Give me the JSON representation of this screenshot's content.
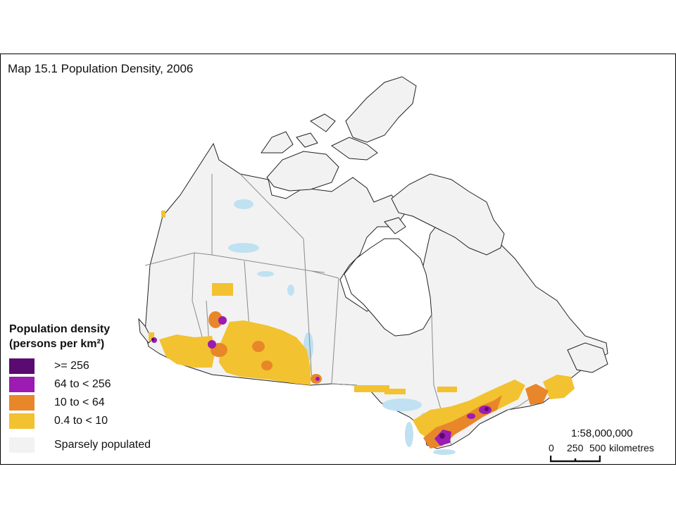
{
  "map": {
    "title": "Map 15.1 Population Density, 2006",
    "legend": {
      "title_line1": "Population density",
      "title_line2": "(persons per km²)",
      "items": [
        {
          "label": ">= 256",
          "color": "#5a0a70"
        },
        {
          "label": "64 to < 256",
          "color": "#9b1bb3"
        },
        {
          "label": "10 to < 64",
          "color": "#e8862a"
        },
        {
          "label": "0.4 to < 10",
          "color": "#f2c230"
        },
        {
          "label": "Sparsely populated",
          "color": "#f2f2f2"
        }
      ]
    },
    "scale": {
      "ratio": "1:58,000,000",
      "tick_0": "0",
      "tick_250": "250",
      "tick_500": "500",
      "unit": "kilometres"
    },
    "colors": {
      "water": "#bfe1f2",
      "land": "#f2f2f2",
      "border": "#8a8a8a",
      "coast": "#222222"
    }
  }
}
